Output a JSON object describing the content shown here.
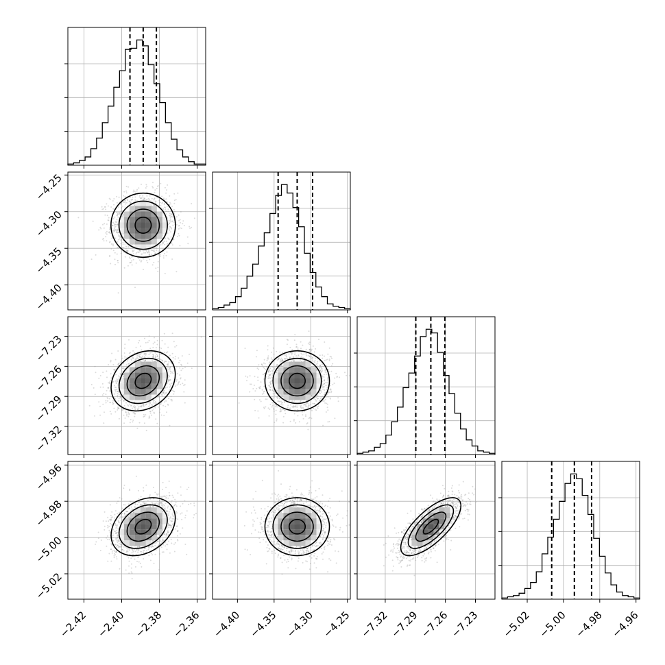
{
  "chart_data": {
    "type": "corner",
    "grid": true,
    "quantile_lines": [
      0.16,
      0.5,
      0.84
    ],
    "params": [
      {
        "ticks": [
          "−2.42",
          "−2.40",
          "−2.38",
          "−2.36"
        ],
        "tick_values": [
          -2.42,
          -2.4,
          -2.38,
          -2.36
        ],
        "range": [
          -2.4285,
          -2.3555
        ],
        "mean": -2.3886,
        "sd": 0.0085,
        "quantiles": [
          -2.3956,
          -2.3886,
          -2.3816
        ],
        "hist_counts": [
          1,
          2,
          4,
          7,
          14,
          23,
          36,
          50,
          66,
          80,
          98,
          99,
          106,
          101,
          85,
          69,
          53,
          36,
          22,
          13,
          7,
          3,
          1,
          1
        ]
      },
      {
        "ticks": [
          "−4.40",
          "−4.35",
          "−4.30",
          "−4.25"
        ],
        "tick_values": [
          -4.4,
          -4.35,
          -4.3,
          -4.25
        ],
        "range": [
          -4.434,
          -4.246
        ],
        "mean": -4.3185,
        "sd": 0.022,
        "quantiles": [
          -4.3445,
          -4.3185,
          -4.2975
        ],
        "hist_counts": [
          1,
          2,
          4,
          6,
          11,
          18,
          28,
          38,
          53,
          64,
          80,
          95,
          104,
          97,
          85,
          69,
          47,
          31,
          19,
          11,
          5,
          3,
          2,
          1
        ]
      },
      {
        "ticks": [
          "−7.32",
          "−7.29",
          "−7.26",
          "−7.23"
        ],
        "tick_values": [
          -7.32,
          -7.29,
          -7.26,
          -7.23
        ],
        "range": [
          -7.348,
          -7.2105
        ],
        "mean": -7.2745,
        "sd": 0.015,
        "quantiles": [
          -7.2895,
          -7.2745,
          -7.2605
        ],
        "hist_counts": [
          1,
          2,
          3,
          6,
          9,
          16,
          27,
          39,
          55,
          67,
          81,
          97,
          103,
          100,
          84,
          65,
          50,
          34,
          21,
          12,
          7,
          3,
          2,
          1
        ]
      },
      {
        "ticks": [
          "−5.02",
          "−5.00",
          "−4.98",
          "−4.96"
        ],
        "tick_values": [
          -5.02,
          -5.0,
          -4.98,
          -4.96
        ],
        "range": [
          -5.034,
          -4.958
        ],
        "mean": -4.994,
        "sd": 0.008,
        "quantiles": [
          -5.0065,
          -4.994,
          -4.9845
        ],
        "hist_counts": [
          1,
          2,
          3,
          5,
          9,
          14,
          23,
          38,
          52,
          67,
          82,
          97,
          105,
          101,
          87,
          71,
          51,
          36,
          22,
          12,
          6,
          3,
          2,
          1
        ]
      }
    ],
    "correlations": [
      [
        1.0,
        0.0,
        0.22,
        0.3
      ],
      [
        0.0,
        1.0,
        0.0,
        0.0
      ],
      [
        0.22,
        0.0,
        1.0,
        0.72
      ],
      [
        0.3,
        0.0,
        0.72,
        1.0
      ]
    ],
    "sample_color": "#999999",
    "contour_color": "#000000",
    "grid_color": "#b0b0b0"
  }
}
